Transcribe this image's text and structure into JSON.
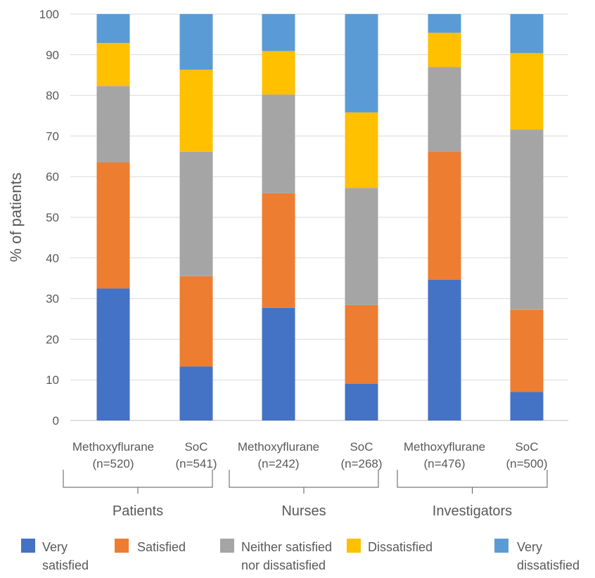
{
  "chart_data": {
    "type": "bar",
    "stacked": true,
    "title": "",
    "ylabel": "% of patients",
    "xlabel": "",
    "ylim": [
      0,
      100
    ],
    "yticks": [
      0,
      10,
      20,
      30,
      40,
      50,
      60,
      70,
      80,
      90,
      100
    ],
    "grid": true,
    "legend_position": "bottom",
    "categories": [
      {
        "name": "Methoxyflurane",
        "n": "(n=520)",
        "group": "Patients"
      },
      {
        "name": "SoC",
        "n": "(n=541)",
        "group": "Patients"
      },
      {
        "name": "Methoxyflurane",
        "n": "(n=242)",
        "group": "Nurses"
      },
      {
        "name": "SoC",
        "n": "(n=268)",
        "group": "Nurses"
      },
      {
        "name": "Methoxyflurane",
        "n": "(n=476)",
        "group": "Investigators"
      },
      {
        "name": "SoC",
        "n": "(n=500)",
        "group": "Investigators"
      }
    ],
    "groups": [
      "Patients",
      "Nurses",
      "Investigators"
    ],
    "series": [
      {
        "name": "Very satisfied",
        "legend_lines": [
          "Very",
          "satisfied"
        ],
        "color": "#4472C4",
        "values": [
          32.5,
          13.3,
          27.7,
          9.0,
          34.6,
          7.0
        ]
      },
      {
        "name": "Satisfied",
        "legend_lines": [
          "Satisfied"
        ],
        "color": "#ED7D31",
        "values": [
          31.0,
          22.2,
          28.2,
          19.4,
          31.6,
          20.2
        ]
      },
      {
        "name": "Neither satisfied nor dissatisfied",
        "legend_lines": [
          "Neither satisfied",
          "nor dissatisfied"
        ],
        "color": "#A5A5A5",
        "values": [
          18.8,
          30.6,
          24.3,
          28.8,
          20.8,
          44.4
        ]
      },
      {
        "name": "Dissatisfied",
        "legend_lines": [
          "Dissatisfied"
        ],
        "color": "#FFC000",
        "values": [
          10.6,
          20.2,
          10.7,
          18.6,
          8.4,
          18.8
        ]
      },
      {
        "name": "Very dissatisfied",
        "legend_lines": [
          "Very",
          "dissatisfied"
        ],
        "color": "#5B9BD5",
        "values": [
          7.1,
          13.7,
          9.1,
          24.2,
          4.6,
          9.6
        ]
      }
    ]
  }
}
